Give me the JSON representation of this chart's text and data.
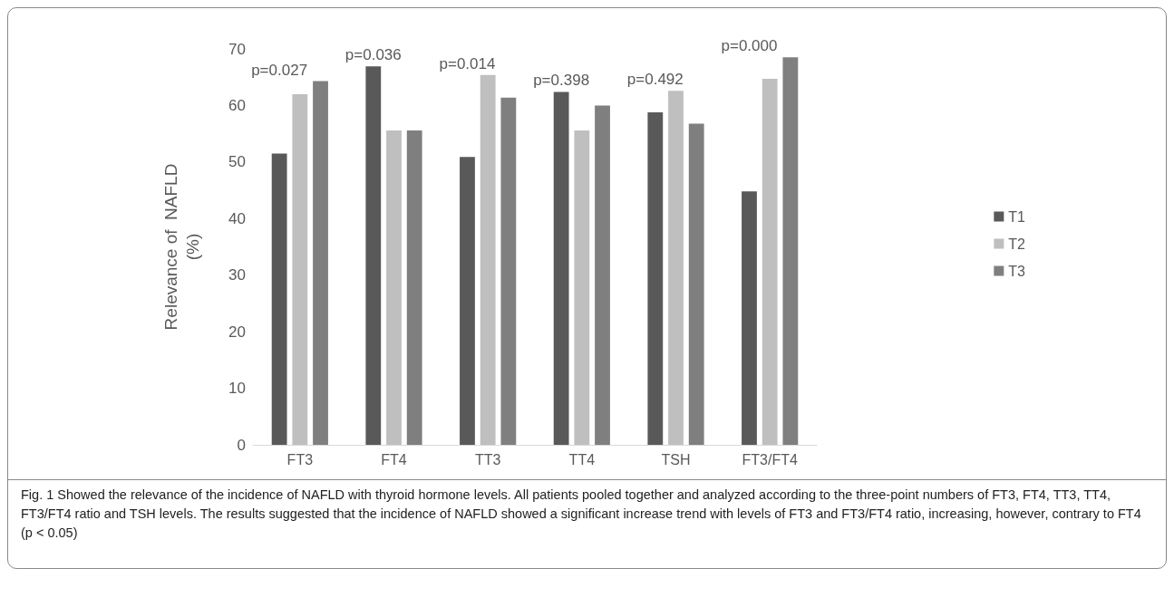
{
  "chart_data": {
    "type": "bar",
    "categories": [
      "FT3",
      "FT4",
      "TT3",
      "TT4",
      "TSH",
      "FT3/FT4"
    ],
    "series": [
      {
        "name": "T1",
        "color": "#595959",
        "values": [
          51.5,
          66.9,
          50.9,
          62.4,
          58.8,
          44.8
        ]
      },
      {
        "name": "T2",
        "color": "#bfbfbf",
        "values": [
          62.0,
          55.6,
          65.4,
          55.6,
          62.6,
          64.7
        ]
      },
      {
        "name": "T3",
        "color": "#7f7f7f",
        "values": [
          64.3,
          55.6,
          61.4,
          60.0,
          56.8,
          68.5
        ]
      }
    ],
    "ylabel": "Relevance of  NAFLD\n(%)",
    "ylim": [
      0,
      70
    ],
    "yticks": [
      0,
      10,
      20,
      30,
      40,
      50,
      60,
      70
    ],
    "grid": false,
    "legend": "right",
    "annotations": [
      "p=0.027",
      "p=0.036",
      "p=0.014",
      "p=0.398",
      "p=0.492",
      "p=0.000",
      "Fig. 1  Showed the relevance of the incidence of NAFLD with thyroid hormone levels. All patients pooled together and analyzed according to the three-point numbers of FT3, FT4, TT3, TT4, FT3/FT4 ratio and TSH levels. The results suggested that the incidence of NAFLD showed a significant increase trend with levels of FT3 and FT3/FT4 ratio, increasing, however, contrary to FT4 (p < 0.05)"
    ]
  }
}
